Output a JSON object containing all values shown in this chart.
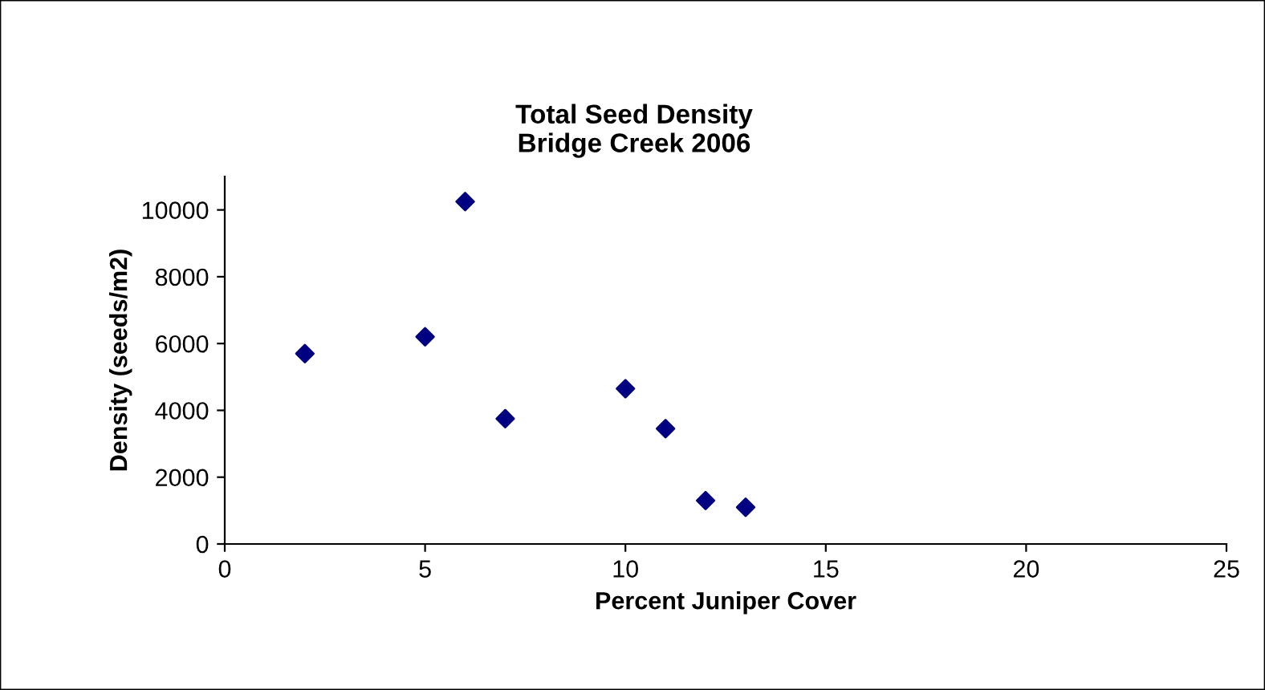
{
  "chart_data": {
    "type": "scatter",
    "title": "Total Seed Density\nBridge Creek 2006",
    "xlabel": "Percent Juniper Cover",
    "ylabel": "Density (seeds/m2)",
    "x": [
      2,
      5,
      6,
      7,
      10,
      11,
      12,
      13
    ],
    "series": [
      {
        "color": "#000080",
        "values": [
          5700,
          6200,
          10250,
          3750,
          4650,
          3450,
          1300,
          1100
        ]
      }
    ],
    "xlim": [
      0,
      25
    ],
    "xticks": [
      0,
      5,
      10,
      15,
      20,
      25
    ],
    "ylim": [
      0,
      11000
    ],
    "yticks": [
      0,
      2000,
      4000,
      6000,
      8000,
      10000
    ],
    "marker": "diamond",
    "grid": false
  }
}
